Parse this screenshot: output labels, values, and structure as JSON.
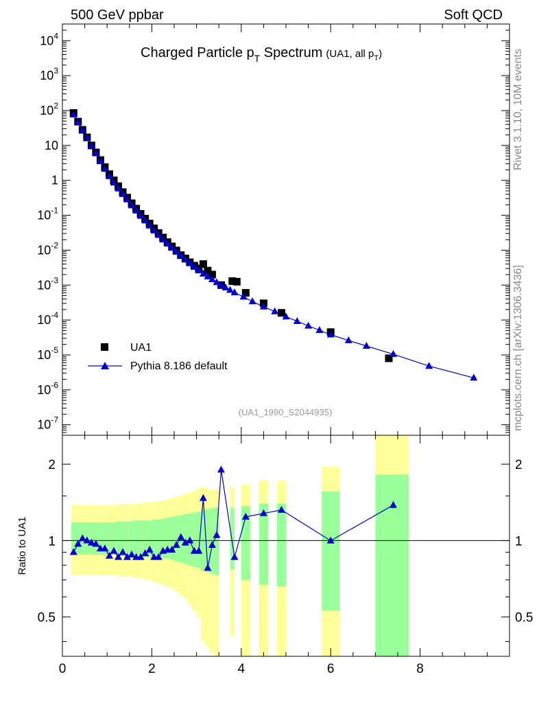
{
  "header": {
    "left": "500 GeV ppbar",
    "right": "Soft QCD"
  },
  "side": {
    "version": "Rivet 3.1.10,  10M events",
    "source": "mcplots.cern.ch [arXiv:1306.3436]"
  },
  "title": {
    "main_prefix": "Charged Particle p",
    "main_sub": "T",
    "main_suffix": " Spectrum",
    "extra_prefix": "(UA1, all p",
    "extra_sub": "T",
    "extra_suffix": ")"
  },
  "analysis_id": "(UA1_1990_S2044935)",
  "colors": {
    "mc": "#0000cc",
    "data": "#000000",
    "band_outer": "#ffff99",
    "band_inner": "#99ff99"
  },
  "chart_data": [
    {
      "type": "scatter",
      "name": "spectrum",
      "y_scale": "log",
      "xlim": [
        0,
        10
      ],
      "ylim": [
        5e-08,
        30000.0
      ],
      "y_tick_exponents": [
        -7,
        -6,
        -5,
        -4,
        -3,
        -2,
        -1,
        0,
        1,
        2,
        3,
        4
      ],
      "y_tick_labels": [
        "10^-7",
        "10^-6",
        "10^-5",
        "10^-4",
        "10^-3",
        "10^-2",
        "10^-1",
        "1",
        "10",
        "10^2",
        "10^3",
        "10^4"
      ],
      "legend": {
        "position": "bottom-left",
        "entries": [
          "UA1",
          "Pythia 8.186 default"
        ]
      },
      "series": [
        {
          "name": "UA1",
          "marker": "square",
          "x": [
            0.25,
            0.35,
            0.45,
            0.55,
            0.65,
            0.75,
            0.85,
            0.95,
            1.05,
            1.15,
            1.25,
            1.35,
            1.45,
            1.55,
            1.65,
            1.75,
            1.85,
            1.95,
            2.05,
            2.15,
            2.25,
            2.35,
            2.45,
            2.55,
            2.65,
            2.75,
            2.85,
            2.95,
            3.05,
            3.15,
            3.25,
            3.35,
            3.55,
            3.8,
            3.9,
            4.1,
            4.5,
            4.9,
            6.0,
            7.3
          ],
          "y": [
            85,
            48,
            28,
            17,
            10,
            6.3,
            3.8,
            2.4,
            1.5,
            1.0,
            0.68,
            0.46,
            0.32,
            0.22,
            0.155,
            0.11,
            0.08,
            0.058,
            0.042,
            0.031,
            0.023,
            0.017,
            0.0128,
            0.0098,
            0.0072,
            0.0058,
            0.0045,
            0.0036,
            0.003,
            0.004,
            0.0026,
            0.002,
            0.001,
            0.0013,
            0.00125,
            0.0006,
            0.0003,
            0.00016,
            4.5e-05,
            8e-06
          ]
        },
        {
          "name": "Pythia 8.186 default",
          "marker": "triangle",
          "x": [
            0.25,
            0.35,
            0.45,
            0.55,
            0.65,
            0.75,
            0.85,
            0.95,
            1.05,
            1.15,
            1.25,
            1.35,
            1.45,
            1.55,
            1.65,
            1.75,
            1.85,
            1.95,
            2.05,
            2.15,
            2.25,
            2.35,
            2.45,
            2.55,
            2.65,
            2.75,
            2.85,
            2.95,
            3.05,
            3.15,
            3.25,
            3.35,
            3.45,
            3.55,
            3.65,
            3.75,
            3.85,
            4.05,
            4.25,
            4.5,
            4.75,
            5.0,
            5.25,
            5.5,
            5.75,
            6.0,
            6.4,
            6.8,
            7.4,
            8.2,
            9.2
          ],
          "y": [
            76,
            47,
            28,
            17,
            9.8,
            6.0,
            3.5,
            2.1,
            1.3,
            0.85,
            0.58,
            0.4,
            0.28,
            0.19,
            0.135,
            0.095,
            0.07,
            0.05,
            0.036,
            0.027,
            0.02,
            0.0152,
            0.0116,
            0.0089,
            0.0069,
            0.0053,
            0.0042,
            0.0033,
            0.0026,
            0.0021,
            0.00175,
            0.00145,
            0.0012,
            0.001,
            0.00085,
            0.00072,
            0.00061,
            0.00046,
            0.00034,
            0.00024,
            0.000175,
            0.000125,
            9.2e-05,
            6.8e-05,
            5.1e-05,
            3.8e-05,
            2.6e-05,
            1.8e-05,
            1.05e-05,
            4.8e-06,
            2.2e-06
          ]
        }
      ]
    },
    {
      "type": "scatter",
      "name": "ratio",
      "ylabel": "Ratio to UA1",
      "y_scale": "log",
      "xlim": [
        0,
        10
      ],
      "ylim": [
        0.35,
        2.6
      ],
      "y_ticks": [
        0.5,
        1,
        2
      ],
      "y_tick_labels": [
        "0.5",
        "1",
        "2"
      ],
      "x_ticks": [
        0,
        2,
        4,
        6,
        8
      ],
      "x_tick_labels": [
        "0",
        "2",
        "4",
        "6",
        "8"
      ],
      "reference_line": 1,
      "bands": [
        {
          "x0": 0.2,
          "x1": 0.3,
          "inner": [
            0.88,
            1.18
          ],
          "outer": [
            0.73,
            1.38
          ]
        },
        {
          "x0": 0.3,
          "x1": 0.4,
          "inner": [
            0.88,
            1.18
          ],
          "outer": [
            0.73,
            1.38
          ]
        },
        {
          "x0": 0.4,
          "x1": 0.5,
          "inner": [
            0.88,
            1.18
          ],
          "outer": [
            0.73,
            1.38
          ]
        },
        {
          "x0": 0.5,
          "x1": 0.6,
          "inner": [
            0.88,
            1.18
          ],
          "outer": [
            0.73,
            1.38
          ]
        },
        {
          "x0": 0.6,
          "x1": 0.7,
          "inner": [
            0.88,
            1.18
          ],
          "outer": [
            0.73,
            1.38
          ]
        },
        {
          "x0": 0.7,
          "x1": 0.8,
          "inner": [
            0.88,
            1.18
          ],
          "outer": [
            0.73,
            1.38
          ]
        },
        {
          "x0": 0.8,
          "x1": 0.9,
          "inner": [
            0.88,
            1.18
          ],
          "outer": [
            0.73,
            1.38
          ]
        },
        {
          "x0": 0.9,
          "x1": 1.0,
          "inner": [
            0.88,
            1.18
          ],
          "outer": [
            0.73,
            1.38
          ]
        },
        {
          "x0": 1.0,
          "x1": 1.1,
          "inner": [
            0.88,
            1.18
          ],
          "outer": [
            0.73,
            1.38
          ]
        },
        {
          "x0": 1.1,
          "x1": 1.2,
          "inner": [
            0.88,
            1.18
          ],
          "outer": [
            0.73,
            1.38
          ]
        },
        {
          "x0": 1.2,
          "x1": 1.3,
          "inner": [
            0.87,
            1.19
          ],
          "outer": [
            0.72,
            1.39
          ]
        },
        {
          "x0": 1.3,
          "x1": 1.4,
          "inner": [
            0.87,
            1.19
          ],
          "outer": [
            0.72,
            1.39
          ]
        },
        {
          "x0": 1.4,
          "x1": 1.5,
          "inner": [
            0.87,
            1.19
          ],
          "outer": [
            0.72,
            1.39
          ]
        },
        {
          "x0": 1.5,
          "x1": 1.6,
          "inner": [
            0.87,
            1.19
          ],
          "outer": [
            0.72,
            1.39
          ]
        },
        {
          "x0": 1.6,
          "x1": 1.7,
          "inner": [
            0.87,
            1.2
          ],
          "outer": [
            0.71,
            1.4
          ]
        },
        {
          "x0": 1.7,
          "x1": 1.8,
          "inner": [
            0.87,
            1.2
          ],
          "outer": [
            0.71,
            1.4
          ]
        },
        {
          "x0": 1.8,
          "x1": 1.9,
          "inner": [
            0.86,
            1.2
          ],
          "outer": [
            0.7,
            1.41
          ]
        },
        {
          "x0": 1.9,
          "x1": 2.0,
          "inner": [
            0.86,
            1.2
          ],
          "outer": [
            0.7,
            1.41
          ]
        },
        {
          "x0": 2.0,
          "x1": 2.1,
          "inner": [
            0.86,
            1.21
          ],
          "outer": [
            0.69,
            1.42
          ]
        },
        {
          "x0": 2.1,
          "x1": 2.2,
          "inner": [
            0.86,
            1.21
          ],
          "outer": [
            0.68,
            1.43
          ]
        },
        {
          "x0": 2.2,
          "x1": 2.3,
          "inner": [
            0.85,
            1.22
          ],
          "outer": [
            0.67,
            1.44
          ]
        },
        {
          "x0": 2.3,
          "x1": 2.4,
          "inner": [
            0.85,
            1.23
          ],
          "outer": [
            0.66,
            1.45
          ]
        },
        {
          "x0": 2.4,
          "x1": 2.5,
          "inner": [
            0.84,
            1.24
          ],
          "outer": [
            0.65,
            1.47
          ]
        },
        {
          "x0": 2.5,
          "x1": 2.6,
          "inner": [
            0.83,
            1.25
          ],
          "outer": [
            0.63,
            1.49
          ]
        },
        {
          "x0": 2.6,
          "x1": 2.7,
          "inner": [
            0.82,
            1.26
          ],
          "outer": [
            0.61,
            1.51
          ]
        },
        {
          "x0": 2.7,
          "x1": 2.8,
          "inner": [
            0.81,
            1.27
          ],
          "outer": [
            0.59,
            1.53
          ]
        },
        {
          "x0": 2.8,
          "x1": 2.9,
          "inner": [
            0.8,
            1.28
          ],
          "outer": [
            0.56,
            1.55
          ]
        },
        {
          "x0": 2.9,
          "x1": 3.0,
          "inner": [
            0.79,
            1.29
          ],
          "outer": [
            0.53,
            1.57
          ]
        },
        {
          "x0": 3.0,
          "x1": 3.1,
          "inner": [
            0.78,
            1.3
          ],
          "outer": [
            0.5,
            1.6
          ]
        },
        {
          "x0": 3.1,
          "x1": 3.2,
          "inner": [
            0.76,
            1.32
          ],
          "outer": [
            0.4,
            1.62
          ]
        },
        {
          "x0": 3.2,
          "x1": 3.3,
          "inner": [
            0.75,
            1.33
          ],
          "outer": [
            0.38,
            1.6
          ]
        },
        {
          "x0": 3.3,
          "x1": 3.4,
          "inner": [
            0.74,
            1.34
          ],
          "outer": [
            0.36,
            1.58
          ]
        },
        {
          "x0": 3.4,
          "x1": 3.5,
          "inner": [
            0.73,
            1.35
          ],
          "outer": [
            0.34,
            1.6
          ]
        },
        {
          "x0": 3.75,
          "x1": 3.85,
          "inner": [
            0.77,
            1.35
          ],
          "outer": [
            0.42,
            1.62
          ]
        },
        {
          "x0": 4.0,
          "x1": 4.2,
          "inner": [
            0.7,
            1.37
          ],
          "outer": [
            0.3,
            1.66
          ]
        },
        {
          "x0": 4.4,
          "x1": 4.6,
          "inner": [
            0.67,
            1.4
          ],
          "outer": [
            0.3,
            1.72
          ]
        },
        {
          "x0": 4.8,
          "x1": 5.0,
          "inner": [
            0.66,
            1.4
          ],
          "outer": [
            0.3,
            1.72
          ]
        },
        {
          "x0": 5.8,
          "x1": 6.2,
          "inner": [
            0.53,
            1.56
          ],
          "outer": [
            0.3,
            1.96
          ]
        },
        {
          "x0": 7.0,
          "x1": 7.75,
          "inner": [
            0.3,
            1.82
          ],
          "outer": [
            0.3,
            2.7
          ]
        }
      ],
      "series": [
        {
          "name": "Pythia 8.186 default",
          "marker": "triangle",
          "x": [
            0.25,
            0.35,
            0.45,
            0.55,
            0.65,
            0.75,
            0.85,
            0.95,
            1.05,
            1.15,
            1.25,
            1.35,
            1.45,
            1.55,
            1.65,
            1.75,
            1.85,
            1.95,
            2.05,
            2.15,
            2.25,
            2.35,
            2.45,
            2.55,
            2.65,
            2.75,
            2.85,
            2.95,
            3.05,
            3.15,
            3.25,
            3.35,
            3.45,
            3.55,
            3.85,
            4.1,
            4.5,
            4.9,
            6.0,
            7.4
          ],
          "y": [
            0.9,
            0.97,
            1.02,
            1.0,
            0.98,
            0.97,
            0.93,
            0.93,
            0.87,
            0.91,
            0.86,
            0.9,
            0.86,
            0.88,
            0.86,
            0.86,
            0.89,
            0.92,
            0.86,
            0.86,
            0.91,
            0.92,
            0.92,
            0.96,
            1.03,
            0.98,
            1.0,
            0.91,
            0.91,
            1.47,
            0.78,
            0.96,
            1.05,
            1.9,
            0.86,
            1.24,
            1.28,
            1.32,
            0.999,
            1.38
          ],
          "err": [
            0,
            0,
            0,
            0,
            0,
            0,
            0,
            0,
            0,
            0,
            0,
            0,
            0,
            0,
            0,
            0,
            0,
            0,
            0,
            0,
            0,
            0,
            0,
            0,
            0,
            0,
            0,
            0,
            0,
            0,
            0,
            0,
            0,
            0,
            0,
            0,
            0,
            0,
            0.02,
            0.04
          ]
        }
      ]
    }
  ]
}
